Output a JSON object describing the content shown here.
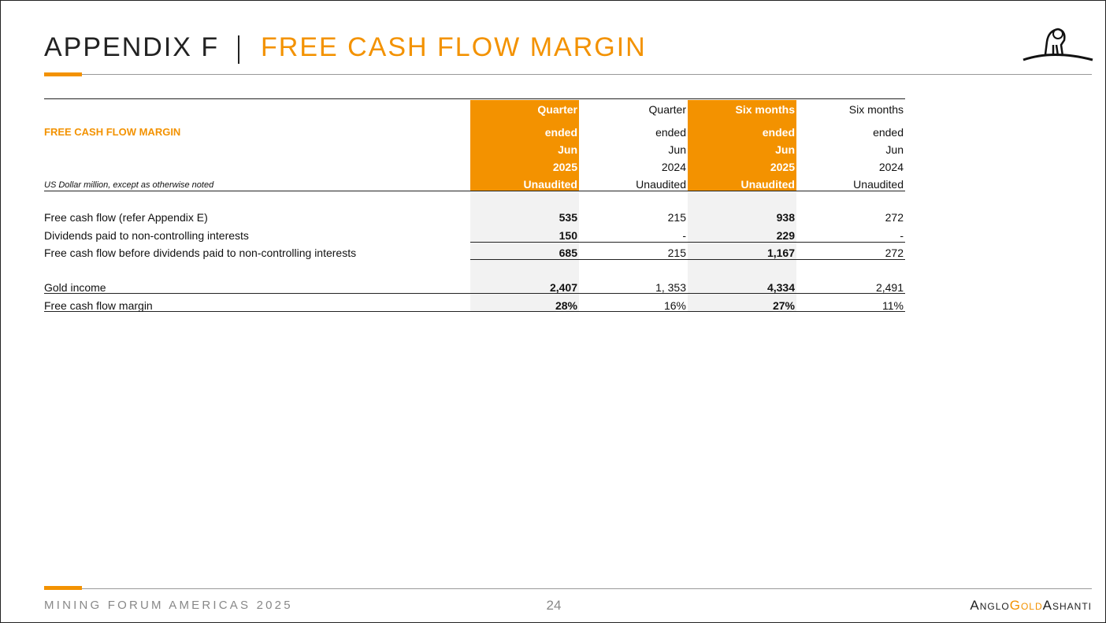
{
  "header": {
    "title_prefix": "APPENDIX F",
    "title": "FREE CASH FLOW MARGIN"
  },
  "table": {
    "section_label": "FREE CASH FLOW MARGIN",
    "unit_note": "US Dollar million, except as otherwise noted",
    "columns": [
      [
        "Quarter",
        "ended",
        "Jun",
        "2025",
        "Unaudited"
      ],
      [
        "Quarter",
        "ended",
        "Jun",
        "2024",
        "Unaudited"
      ],
      [
        "Six months",
        "ended",
        "Jun",
        "2025",
        "Unaudited"
      ],
      [
        "Six months",
        "ended",
        "Jun",
        "2024",
        "Unaudited"
      ]
    ],
    "rows": [
      {
        "label": "Free cash flow (refer Appendix E)",
        "values": [
          "535",
          "215",
          "938",
          "272"
        ]
      },
      {
        "label": "Dividends paid to non-controlling interests",
        "values": [
          "150",
          "-",
          "229",
          "-"
        ]
      },
      {
        "label": "Free cash flow before dividends paid to non-controlling interests",
        "values": [
          "685",
          "215",
          "1,167",
          "272"
        ]
      },
      {
        "label": "Gold income",
        "values": [
          "2,407",
          "1, 353",
          "4,334",
          "2,491"
        ]
      },
      {
        "label": "Free cash flow margin",
        "values": [
          "28%",
          "16%",
          "27%",
          "11%"
        ]
      }
    ]
  },
  "footer": {
    "event": "MINING FORUM AMERICAS 2025",
    "page": "24",
    "brand": [
      "Anglo",
      "Gold",
      "Ashanti"
    ]
  }
}
